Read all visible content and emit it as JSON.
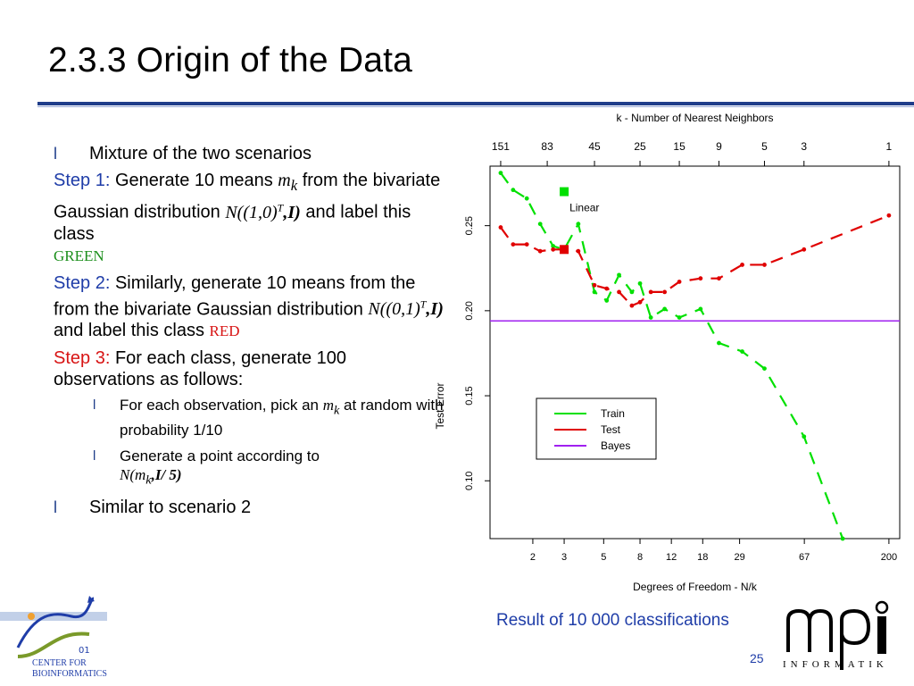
{
  "slide": {
    "title": "2.3.3 Origin of the Data",
    "page_number": "25",
    "caption": "Result of 10 000 classifications"
  },
  "bullets": {
    "b1": "Mixture of the two scenarios",
    "step1_label": "Step 1:",
    "step1_text_a": " Generate 10 means ",
    "step1_mk_m": "m",
    "step1_mk_k": "k",
    "step1_text_b": " from the bivariate Gaussian distribution ",
    "step1_dist": "N((1,0)",
    "step1_dist_sup": "T",
    "step1_dist_end": ",I)",
    "step1_text_c": " and label this class ",
    "step1_class": "GREEN",
    "step2_label": "Step 2:",
    "step2_text_a": " Similarly, generate 10 means from the from the bivariate Gaussian distribution ",
    "step2_dist": "N((0,1)",
    "step2_dist_sup": "T",
    "step2_dist_end": ",I)",
    "step2_text_b": " and label this class ",
    "step2_class": "RED",
    "step3_label": "Step 3:",
    "step3_text": " For each class, generate 100 observations as follows:",
    "sub1_a": "For each observation, pick an ",
    "sub1_m": "m",
    "sub1_k": "k",
    "sub1_b": " at random with probability 1/10",
    "sub2_a": "Generate a point according to ",
    "sub2_dist": "N(m",
    "sub2_k": "k",
    "sub2_end": ",I/ 5)",
    "b_last": "Similar to scenario 2",
    "bullet_mark": "l"
  },
  "logos": {
    "left_line1": "CENTER FOR",
    "left_line2": "BIOINFORMATICS",
    "left_digits": "01",
    "right_word": "INFORMATIK",
    "right_mark": "mpi"
  },
  "colors": {
    "accent_blue": "#1f3da8",
    "train": "#00e000",
    "test": "#e00000",
    "bayes": "#a020f0"
  },
  "chart_data": {
    "type": "line",
    "xlabel": "Degrees of Freedom - N/k",
    "ylabel": "Test Error",
    "top_axis_label": "k -  Number of Nearest Neighbors",
    "x_scale": "log",
    "bottom_ticks": [
      2,
      3,
      5,
      8,
      12,
      18,
      29,
      67,
      200
    ],
    "top_ticks": [
      "151",
      "83",
      "45",
      "25",
      "15",
      "9",
      "5",
      "3",
      "1"
    ],
    "top_tick_df": [
      1.32,
      2.41,
      4.44,
      8,
      13.3,
      22.2,
      40,
      66.7,
      200
    ],
    "y_ticks": [
      0.1,
      0.15,
      0.2,
      0.25
    ],
    "ylim": [
      0.066,
      0.285
    ],
    "xlim": [
      1.15,
      230
    ],
    "legend": [
      "Train",
      "Test",
      "Bayes"
    ],
    "legend_position": "center",
    "series": [
      {
        "name": "Train",
        "color": "#00e000",
        "x": [
          1.32,
          1.55,
          1.85,
          2.2,
          2.6,
          3.0,
          3.6,
          4.44,
          5.2,
          6.1,
          7.2,
          8.0,
          9.2,
          11,
          13.3,
          17.5,
          22.2,
          30,
          40,
          66.7,
          110
        ],
        "y": [
          0.281,
          0.271,
          0.266,
          0.251,
          0.238,
          0.236,
          0.251,
          0.211,
          0.206,
          0.221,
          0.211,
          0.216,
          0.196,
          0.201,
          0.196,
          0.201,
          0.181,
          0.176,
          0.166,
          0.126,
          0.066
        ]
      },
      {
        "name": "Test",
        "color": "#e00000",
        "x": [
          1.32,
          1.55,
          1.85,
          2.2,
          2.6,
          3.0,
          3.6,
          4.44,
          5.2,
          6.1,
          7.2,
          8.0,
          9.2,
          11,
          13.3,
          17.5,
          22.2,
          30,
          40,
          66.7,
          200
        ],
        "y": [
          0.249,
          0.239,
          0.239,
          0.235,
          0.236,
          0.236,
          0.235,
          0.215,
          0.213,
          0.211,
          0.203,
          0.205,
          0.211,
          0.211,
          0.217,
          0.219,
          0.219,
          0.227,
          0.227,
          0.236,
          0.256
        ]
      },
      {
        "name": "Bayes",
        "color": "#a020f0",
        "y": 0.194
      }
    ],
    "annotations": [
      {
        "text": "Linear",
        "markers": [
          {
            "series": "Train",
            "x": 3,
            "y": 0.27
          },
          {
            "series": "Test",
            "x": 3,
            "y": 0.236
          }
        ]
      }
    ]
  }
}
